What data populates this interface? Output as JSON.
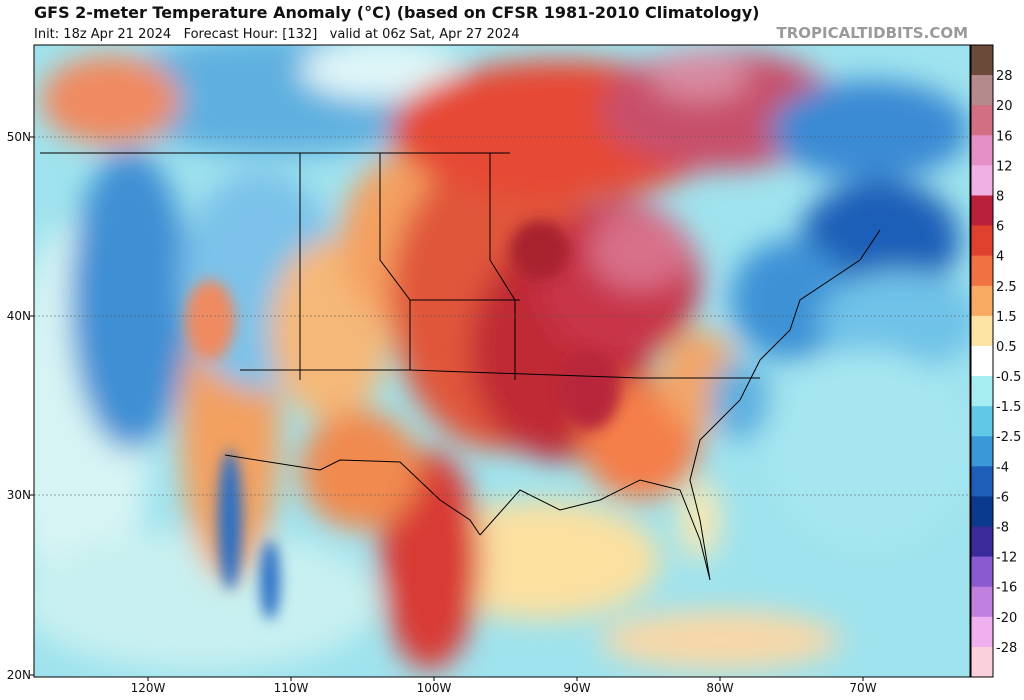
{
  "header": {
    "title": "GFS 2-meter Temperature Anomaly (°C) (based on CFSR 1981-2010 Climatology)",
    "subtitle": "Init: 18z Apr 21 2024   Forecast Hour: [132]   valid at 06z Sat, Apr 27 2024",
    "watermark": "TROPICALTIDBITS.COM"
  },
  "map": {
    "lat_labels": [
      "50N",
      "40N",
      "30N",
      "20N"
    ],
    "lon_labels": [
      "120W",
      "110W",
      "100W",
      "90W",
      "80W",
      "70W"
    ]
  },
  "colorbar": {
    "labels": [
      "28",
      "20",
      "16",
      "12",
      "8",
      "6",
      "4",
      "2.5",
      "1.5",
      "0.5",
      "-0.5",
      "-1.5",
      "-2.5",
      "-4",
      "-6",
      "-8",
      "-12",
      "-16",
      "-20",
      "-28"
    ]
  }
}
